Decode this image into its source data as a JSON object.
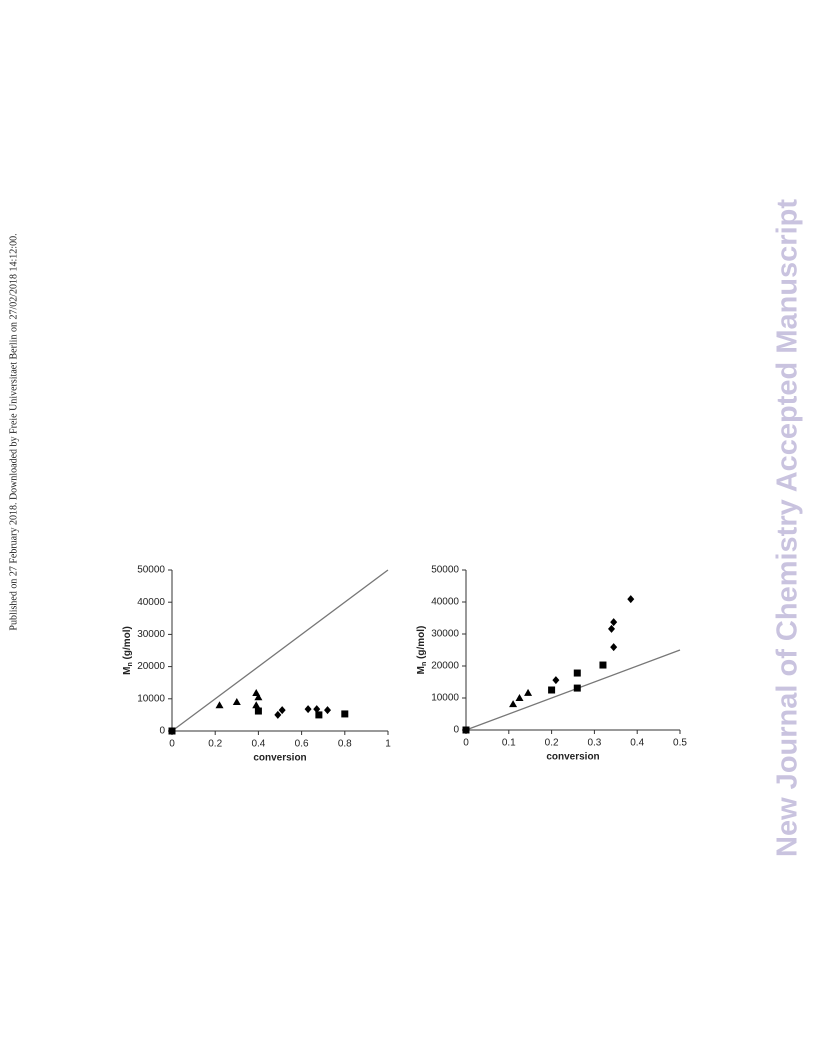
{
  "side_note": "Published on 27 February 2018. Downloaded by Freie Universitaet Berlin on 27/02/2018 14:12:00.",
  "journal_mark": "New Journal of Chemistry Accepted Manuscript",
  "chart_data": [
    {
      "type": "scatter",
      "xlabel": "conversion",
      "ylabel": {
        "main": "M",
        "sub": "n",
        "rest": " (g/mol)"
      },
      "xlim": [
        0,
        1
      ],
      "xticks": [
        0,
        0.2,
        0.4,
        0.6,
        0.8,
        1
      ],
      "ylim": [
        0,
        50000
      ],
      "yticks": [
        0,
        10000,
        20000,
        30000,
        40000,
        50000
      ],
      "series": [
        {
          "marker": "triangle",
          "color": "#000000",
          "x": [
            0.22,
            0.3,
            0.39,
            0.4,
            0.39
          ],
          "values": [
            8000,
            9000,
            11800,
            10500,
            8000
          ]
        },
        {
          "marker": "square",
          "color": "#000000",
          "x": [
            0,
            0.4,
            0.68,
            0.8
          ],
          "values": [
            0,
            6200,
            5000,
            5300
          ]
        },
        {
          "marker": "diamond",
          "color": "#000000",
          "x": [
            0.49,
            0.51,
            0.63,
            0.67,
            0.72
          ],
          "values": [
            5000,
            6500,
            6800,
            6800,
            6500
          ]
        }
      ],
      "lines": [
        {
          "color": "#777777",
          "x": [
            0,
            1
          ],
          "values": [
            0,
            50000
          ]
        }
      ]
    },
    {
      "type": "scatter",
      "xlabel": "conversion",
      "ylabel": {
        "main": "M",
        "sub": "n",
        "rest": " (g/mol)"
      },
      "xlim": [
        0,
        0.5
      ],
      "xticks": [
        0,
        0.1,
        0.2,
        0.3,
        0.4,
        0.5
      ],
      "ylim": [
        0,
        50000
      ],
      "yticks": [
        0,
        10000,
        20000,
        30000,
        40000,
        50000
      ],
      "series": [
        {
          "marker": "triangle",
          "color": "#000000",
          "x": [
            0.11,
            0.125,
            0.145
          ],
          "values": [
            8100,
            10000,
            11600
          ]
        },
        {
          "marker": "square",
          "color": "#000000",
          "x": [
            0,
            0.2,
            0.26,
            0.26,
            0.32
          ],
          "values": [
            0,
            12500,
            13100,
            17800,
            20300
          ]
        },
        {
          "marker": "diamond",
          "color": "#000000",
          "x": [
            0.21,
            0.34,
            0.345,
            0.345,
            0.385
          ],
          "values": [
            15600,
            31600,
            33700,
            25900,
            40900
          ]
        }
      ],
      "lines": [
        {
          "color": "#777777",
          "x": [
            0,
            0.5
          ],
          "values": [
            0,
            25000
          ]
        }
      ]
    }
  ]
}
